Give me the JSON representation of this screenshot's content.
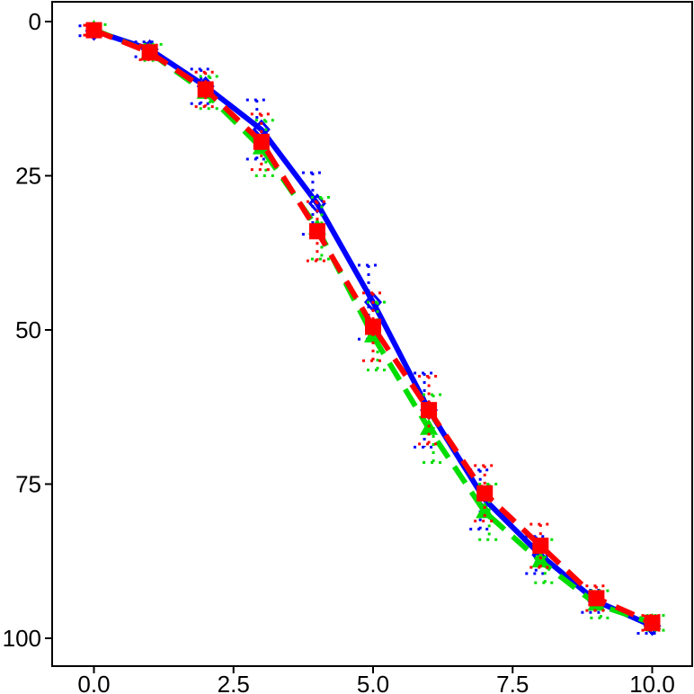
{
  "chart_data": {
    "type": "line",
    "title": "",
    "xlabel": "",
    "ylabel": "",
    "xlim": [
      -0.75,
      10.75
    ],
    "ylim": [
      0,
      100
    ],
    "y_inverted": true,
    "grid": false,
    "legend": "none",
    "x_ticks": [
      0,
      2.5,
      5,
      7.5,
      10
    ],
    "x_tick_labels": [
      "0.0",
      "2.5",
      "5.0",
      "7.5",
      "10.0"
    ],
    "y_ticks": [
      0,
      25,
      50,
      75,
      100
    ],
    "y_tick_labels": [
      "0",
      "25",
      "50",
      "75",
      "100"
    ],
    "x": [
      0,
      1,
      2,
      3,
      4,
      5,
      6,
      7,
      8,
      9,
      10
    ],
    "series": [
      {
        "color": "#0000ff",
        "line": "solid",
        "marker": "diamond",
        "values": [
          1.5,
          4.5,
          10.5,
          17.5,
          29.5,
          45.5,
          63,
          77.5,
          86.5,
          94,
          98
        ],
        "error": [
          0.8,
          1.2,
          2.8,
          4.8,
          5.0,
          6.0,
          6.0,
          4.8,
          3.0,
          1.8,
          1.2
        ]
      },
      {
        "color": "#00dd00",
        "line": "dashed",
        "marker": "triangle",
        "values": [
          1.3,
          5,
          11.5,
          20.5,
          33.5,
          51,
          66,
          79.5,
          87.5,
          94.5,
          97.5
        ],
        "error": [
          0.8,
          1.3,
          2.6,
          4.5,
          5.0,
          5.5,
          5.5,
          4.5,
          3.5,
          2.2,
          1.2
        ]
      },
      {
        "color": "#ff0000",
        "line": "dashed",
        "marker": "square",
        "values": [
          1.4,
          5,
          11,
          19.5,
          34,
          49.5,
          63,
          76.5,
          85,
          93.5,
          97.5
        ],
        "error": [
          0.8,
          1.2,
          2.8,
          4.5,
          4.8,
          5.5,
          5.5,
          4.5,
          3.5,
          2.0,
          1.2
        ]
      }
    ]
  }
}
